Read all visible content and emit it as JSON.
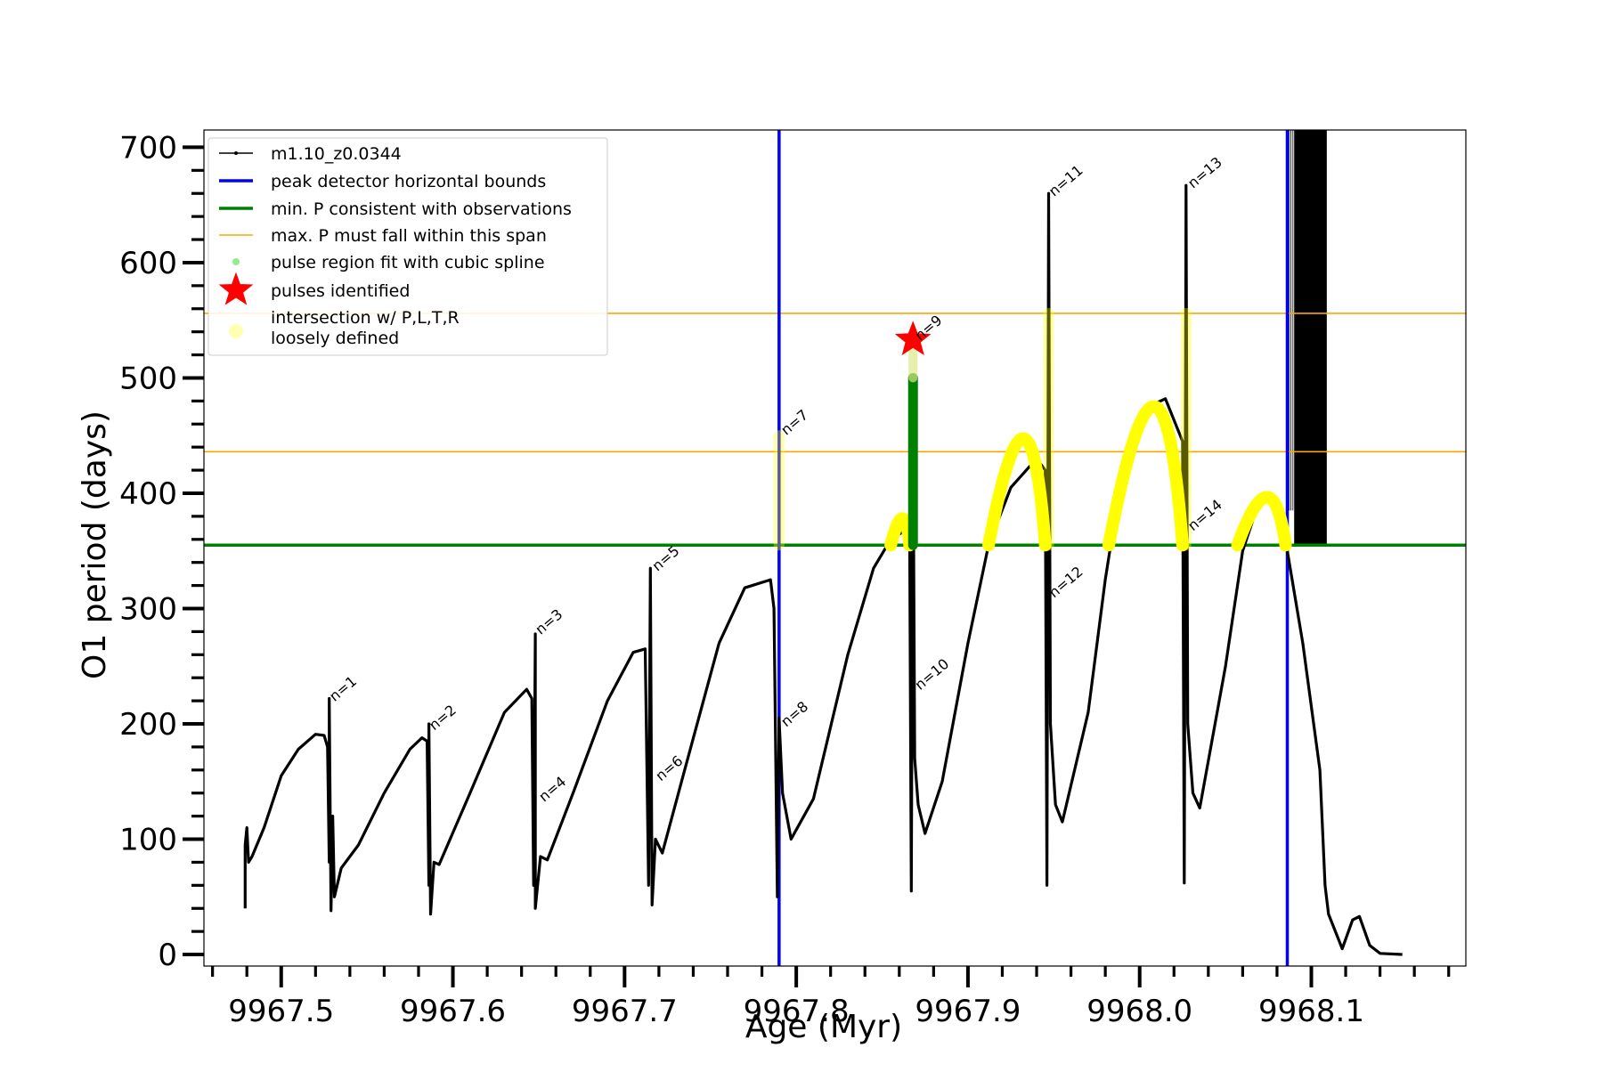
{
  "chart_data": {
    "type": "line",
    "xlabel": "Age (Myr)",
    "ylabel": "O1 period (days)",
    "xlim": [
      9967.455,
      9968.19
    ],
    "ylim": [
      -10,
      715
    ],
    "x_ticks": [
      "9967.5",
      "9967.6",
      "9967.7",
      "9967.8",
      "9967.9",
      "9968.0",
      "9968.1"
    ],
    "y_ticks": [
      "0",
      "100",
      "200",
      "300",
      "400",
      "500",
      "600",
      "700"
    ],
    "legend_position": "top-left",
    "legend": {
      "series": "m1.10_z0.0344",
      "bounds": "peak detector horizontal bounds",
      "minP": "min. P consistent with observations",
      "maxP": "max. P must fall within this span",
      "spline": "pulse region fit with cubic spline",
      "pulses": "pulses identified",
      "intersect_1": "intersection w/ P,L,T,R",
      "intersect_2": "loosely defined"
    },
    "colors": {
      "series": "#000000",
      "bounds": "#0000ff",
      "minP": "#008000",
      "maxP": "#ffa500",
      "spline": "#90ee90",
      "pulses": "#ff0000",
      "intersect": "#ffff00"
    },
    "vertical_bounds": [
      9967.79,
      9968.086
    ],
    "min_period": 355,
    "max_period_span": [
      436,
      556
    ],
    "series_points": [
      [
        9967.479,
        40
      ],
      [
        9967.479,
        95
      ],
      [
        9967.48,
        110
      ],
      [
        9967.481,
        80
      ],
      [
        9967.483,
        85
      ],
      [
        9967.49,
        110
      ],
      [
        9967.5,
        155
      ],
      [
        9967.51,
        178
      ],
      [
        9967.52,
        191
      ],
      [
        9967.525,
        190
      ],
      [
        9967.527,
        180
      ],
      [
        9967.528,
        80
      ],
      [
        9967.528,
        222
      ],
      [
        9967.529,
        38
      ],
      [
        9967.53,
        120
      ],
      [
        9967.531,
        50
      ],
      [
        9967.535,
        75
      ],
      [
        9967.545,
        95
      ],
      [
        9967.56,
        140
      ],
      [
        9967.575,
        178
      ],
      [
        9967.582,
        188
      ],
      [
        9967.585,
        185
      ],
      [
        9967.586,
        60
      ],
      [
        9967.586,
        200
      ],
      [
        9967.587,
        35
      ],
      [
        9967.589,
        80
      ],
      [
        9967.592,
        78
      ],
      [
        9967.61,
        140
      ],
      [
        9967.63,
        210
      ],
      [
        9967.643,
        230
      ],
      [
        9967.646,
        222
      ],
      [
        9967.647,
        60
      ],
      [
        9967.648,
        278
      ],
      [
        9967.648,
        40
      ],
      [
        9967.651,
        85
      ],
      [
        9967.655,
        82
      ],
      [
        9967.67,
        140
      ],
      [
        9967.69,
        220
      ],
      [
        9967.705,
        262
      ],
      [
        9967.712,
        265
      ],
      [
        9967.714,
        60
      ],
      [
        9967.715,
        335
      ],
      [
        9967.716,
        43
      ],
      [
        9967.718,
        100
      ],
      [
        9967.722,
        88
      ],
      [
        9967.735,
        160
      ],
      [
        9967.755,
        270
      ],
      [
        9967.77,
        318
      ],
      [
        9967.785,
        325
      ],
      [
        9967.787,
        300
      ],
      [
        9967.789,
        50
      ],
      [
        9967.79,
        205
      ],
      [
        9967.792,
        140
      ],
      [
        9967.797,
        100
      ],
      [
        9967.81,
        135
      ],
      [
        9967.83,
        260
      ],
      [
        9967.845,
        335
      ],
      [
        9967.855,
        360
      ],
      [
        9967.866,
        370
      ],
      [
        9967.867,
        55
      ],
      [
        9967.868,
        470
      ],
      [
        9967.869,
        170
      ],
      [
        9967.871,
        130
      ],
      [
        9967.875,
        105
      ],
      [
        9967.885,
        150
      ],
      [
        9967.9,
        270
      ],
      [
        9967.912,
        355
      ],
      [
        9967.925,
        405
      ],
      [
        9967.94,
        430
      ],
      [
        9967.945,
        420
      ],
      [
        9967.946,
        60
      ],
      [
        9967.947,
        660
      ],
      [
        9967.948,
        200
      ],
      [
        9967.951,
        130
      ],
      [
        9967.955,
        115
      ],
      [
        9967.97,
        210
      ],
      [
        9967.98,
        325
      ],
      [
        9967.99,
        420
      ],
      [
        9968.005,
        475
      ],
      [
        9968.015,
        482
      ],
      [
        9968.025,
        445
      ],
      [
        9968.026,
        62
      ],
      [
        9968.027,
        667
      ],
      [
        9968.028,
        200
      ],
      [
        9968.031,
        140
      ],
      [
        9968.035,
        127
      ],
      [
        9968.05,
        250
      ],
      [
        9968.06,
        350
      ],
      [
        9968.07,
        395
      ],
      [
        9968.08,
        390
      ],
      [
        9968.086,
        350
      ],
      [
        9968.095,
        270
      ],
      [
        9968.105,
        160
      ],
      [
        9968.108,
        60
      ],
      [
        9968.11,
        35
      ],
      [
        9968.118,
        5
      ],
      [
        9968.124,
        30
      ],
      [
        9968.128,
        33
      ],
      [
        9968.134,
        8
      ],
      [
        9968.14,
        1
      ],
      [
        9968.153,
        0
      ]
    ],
    "oscillation_band": {
      "x_from": 9968.09,
      "x_to": 9968.109,
      "y_from": 355,
      "y_to": 715
    },
    "yellow_arcs": [
      {
        "x_from": 9967.855,
        "x_to": 9967.866,
        "y_peak": 380
      },
      {
        "x_from": 9967.912,
        "x_to": 9967.945,
        "y_peak": 455
      },
      {
        "x_from": 9967.982,
        "x_to": 9968.025,
        "y_peak": 485
      },
      {
        "x_from": 9968.057,
        "x_to": 9968.085,
        "y_peak": 400
      }
    ],
    "yellow_spikes": [
      {
        "x": 9967.79,
        "y_from": 355,
        "y_to": 450
      },
      {
        "x": 9967.947,
        "y_from": 355,
        "y_to": 556
      },
      {
        "x": 9968.027,
        "y_from": 355,
        "y_to": 556
      }
    ],
    "green_spline": {
      "x": 9967.868,
      "y_from": 355,
      "y_to": 500
    },
    "pulse_star": {
      "x": 9967.868,
      "y": 533
    },
    "annotations": [
      {
        "text": "n=1",
        "x": 9967.529,
        "y": 222
      },
      {
        "text": "n=2",
        "x": 9967.587,
        "y": 197
      },
      {
        "text": "n=3",
        "x": 9967.649,
        "y": 280
      },
      {
        "text": "n=4",
        "x": 9967.651,
        "y": 135
      },
      {
        "text": "n=5",
        "x": 9967.717,
        "y": 335
      },
      {
        "text": "n=6",
        "x": 9967.719,
        "y": 153
      },
      {
        "text": "n=7",
        "x": 9967.792,
        "y": 453
      },
      {
        "text": "n=8",
        "x": 9967.792,
        "y": 200
      },
      {
        "text": "n=9",
        "x": 9967.87,
        "y": 535
      },
      {
        "text": "n=10",
        "x": 9967.87,
        "y": 232
      },
      {
        "text": "n=11",
        "x": 9967.948,
        "y": 660
      },
      {
        "text": "n=12",
        "x": 9967.948,
        "y": 312
      },
      {
        "text": "n=13",
        "x": 9968.029,
        "y": 667
      },
      {
        "text": "n=14",
        "x": 9968.029,
        "y": 370
      }
    ]
  }
}
